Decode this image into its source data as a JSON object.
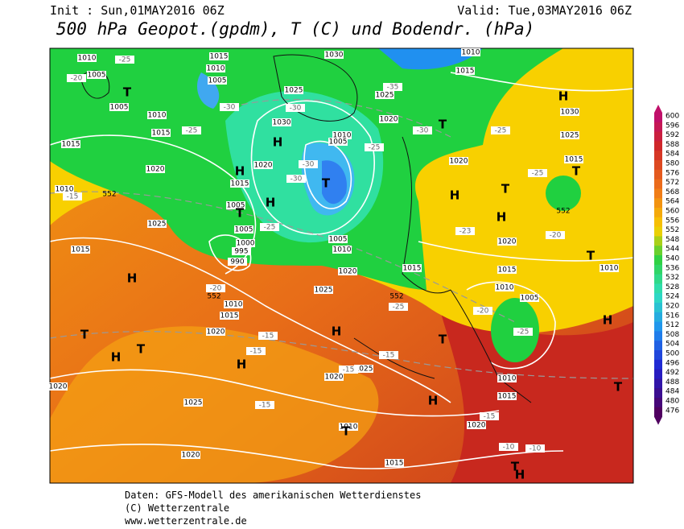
{
  "header": {
    "init": "Init : Sun,01MAY2016 06Z",
    "valid": "Valid: Tue,03MAY2016 06Z",
    "title": "500 hPa Geopot.(gpdm), T (C) und Bodendr. (hPa)"
  },
  "colorbar": {
    "labels": [
      600,
      596,
      592,
      588,
      584,
      580,
      576,
      572,
      568,
      564,
      560,
      556,
      552,
      548,
      544,
      540,
      536,
      532,
      528,
      524,
      520,
      516,
      512,
      508,
      504,
      500,
      496,
      492,
      488,
      484,
      480,
      476
    ]
  },
  "map": {
    "labels": [
      "1010",
      "1005",
      "1015",
      "1010",
      "1005",
      "1030",
      "1010",
      "1015",
      "1025",
      "1025",
      "1005",
      "1010",
      "1020",
      "1030",
      "1015",
      "1010",
      "1005",
      "1015",
      "1020",
      "1020",
      "1030",
      "1025",
      "1015",
      "1020",
      "1015",
      "1010",
      "1005",
      "1025",
      "1005",
      "1000",
      "995",
      "990",
      "1015",
      "1005",
      "1010",
      "1020",
      "1015",
      "1020",
      "1015",
      "1010",
      "1025",
      "1010",
      "1005",
      "1010",
      "1015",
      "1020",
      "1020",
      "1025",
      "1010",
      "1015",
      "1020",
      "1025",
      "1020",
      "1010",
      "1020",
      "1015",
      "-25",
      "-20",
      "-35",
      "-30",
      "-30",
      "-25",
      "-25",
      "-30",
      "-25",
      "-30",
      "-30",
      "-25",
      "-15",
      "-25",
      "-23",
      "-20",
      "-20",
      "-25",
      "-20",
      "-25",
      "-15",
      "-15",
      "-15",
      "-15",
      "-15",
      "-15",
      "-10",
      "-10",
      "T",
      "H",
      "T",
      "H",
      "H",
      "T",
      "T",
      "H",
      "H",
      "T",
      "H",
      "T",
      "H",
      "T",
      "T",
      "H",
      "T",
      "H",
      "H",
      "T",
      "H",
      "T",
      "T",
      "H",
      "T",
      "H",
      "552",
      "552",
      "552",
      "552"
    ]
  },
  "footer": {
    "lines": [
      "Daten: GFS-Modell des amerikanischen Wetterdienstes",
      "(C) Wetterzentrale",
      "www.wetterzentrale.de"
    ]
  }
}
